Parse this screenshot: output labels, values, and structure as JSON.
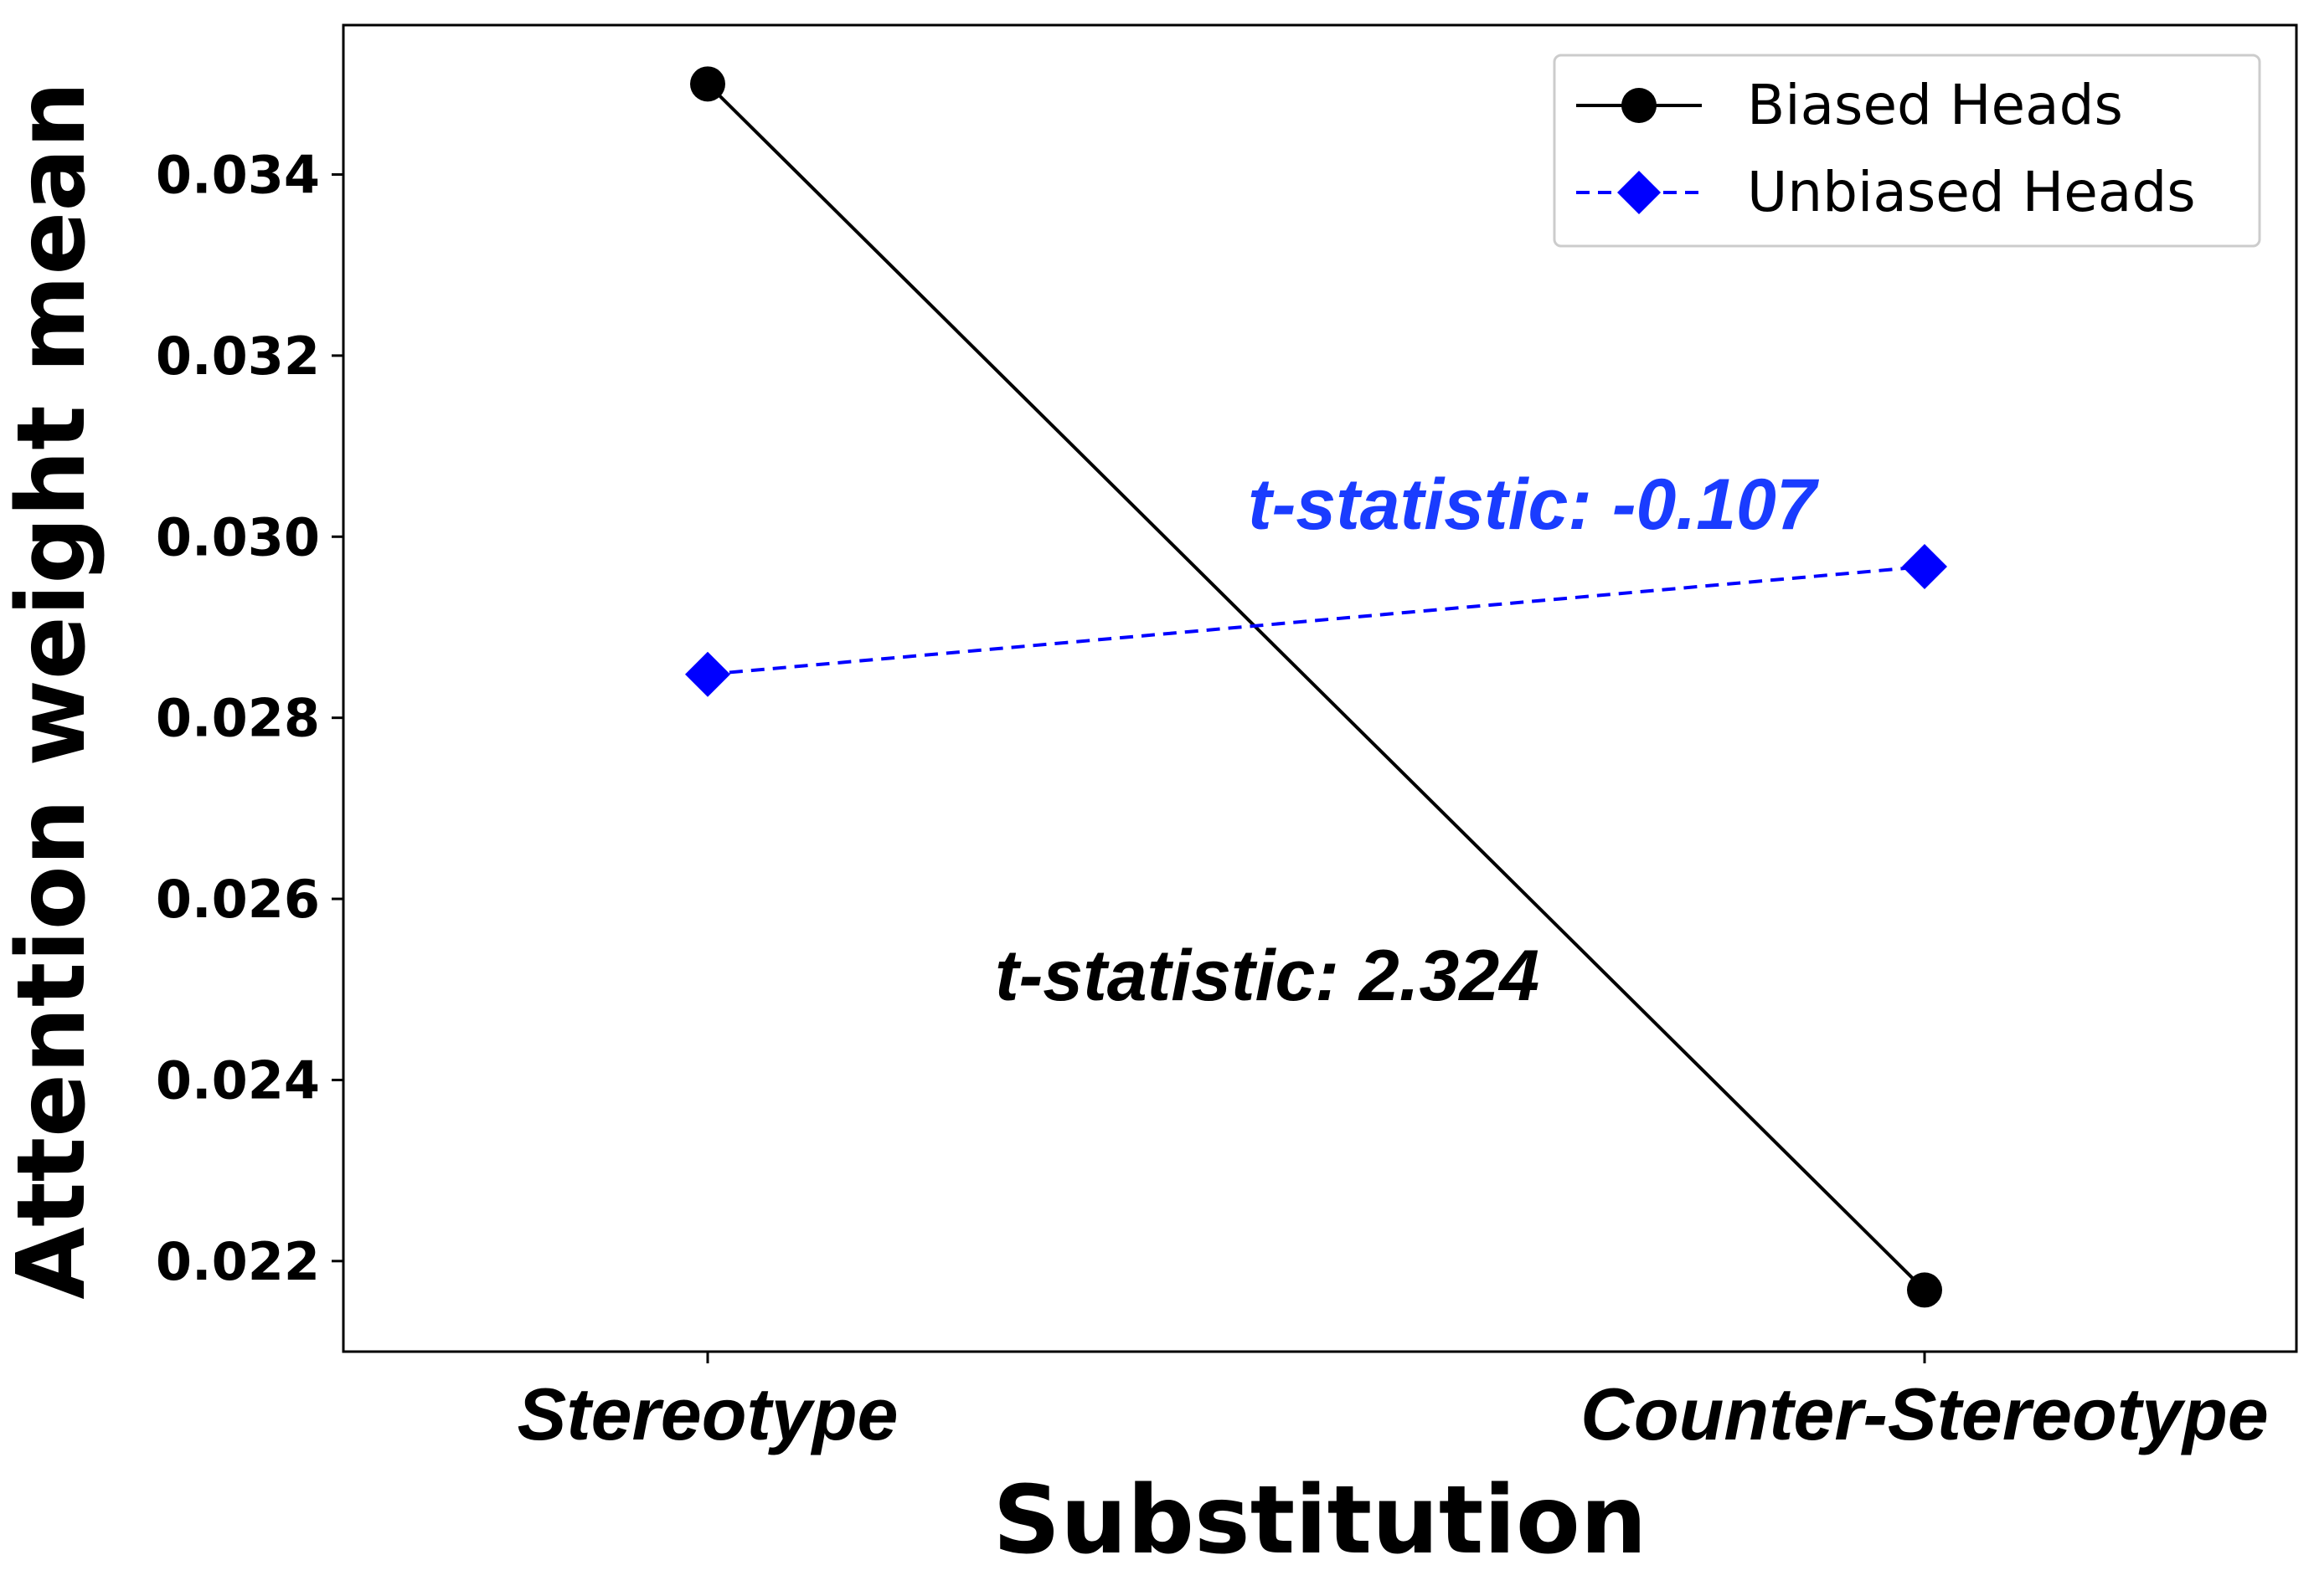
{
  "chart_data": {
    "type": "line",
    "categories": [
      "Stereotype",
      "Counter-Stereotype"
    ],
    "series": [
      {
        "name": "Biased Heads",
        "values": [
          0.035,
          0.02168
        ],
        "color": "#000000",
        "marker": "circle",
        "linestyle": "solid"
      },
      {
        "name": "Unbiased Heads",
        "values": [
          0.02848,
          0.02967
        ],
        "color": "#0000ff",
        "marker": "diamond",
        "linestyle": "dashed"
      }
    ],
    "xlabel": "Substitution",
    "ylabel": "Attention weight mean",
    "ylim": [
      0.021,
      0.03565
    ],
    "yticks": [
      "0.022",
      "0.024",
      "0.026",
      "0.028",
      "0.030",
      "0.032",
      "0.034"
    ],
    "annotations": [
      {
        "text": "t-statistic: -0.107",
        "color": "#1a3cff",
        "series": "Unbiased Heads"
      },
      {
        "text": "t-statistic: 2.324",
        "color": "#000000",
        "series": "Biased Heads"
      }
    ],
    "legend_position": "top-right",
    "grid": false
  }
}
